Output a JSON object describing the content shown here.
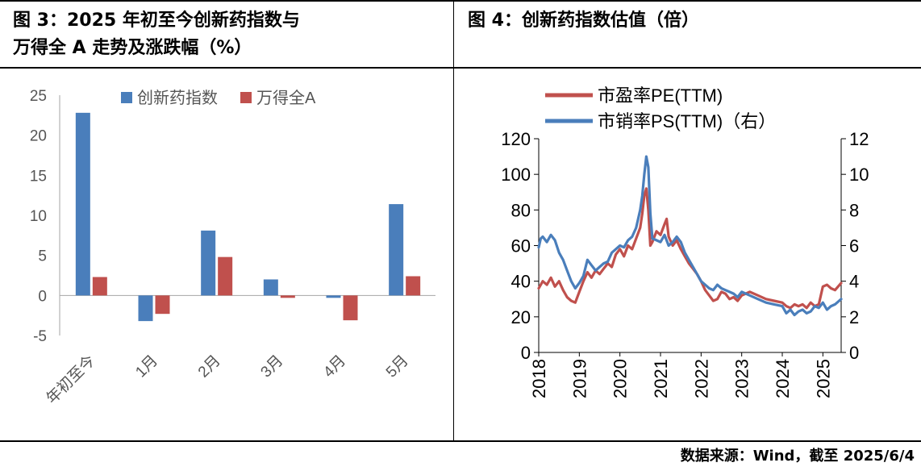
{
  "left_panel": {
    "title_line1": "图 3：2025 年初至今创新药指数与",
    "title_line2": "万得全 A 走势及涨跌幅（%）"
  },
  "right_panel": {
    "title": "图 4：创新药指数估值（倍）"
  },
  "source": "数据来源：Wind，截至 2025/6/4",
  "chart_data": [
    {
      "type": "bar",
      "title": "",
      "categories": [
        "年初至今",
        "1月",
        "2月",
        "3月",
        "4月",
        "5月"
      ],
      "series": [
        {
          "name": "创新药指数",
          "color": "#4a7ebb",
          "values": [
            22.8,
            -3.2,
            8.1,
            2.0,
            -0.3,
            11.4
          ]
        },
        {
          "name": "万得全A",
          "color": "#c0504d",
          "values": [
            2.3,
            -2.3,
            4.8,
            -0.3,
            -3.1,
            2.4
          ]
        }
      ],
      "y_ticks": [
        -5,
        0,
        5,
        10,
        15,
        20,
        25
      ],
      "ylim": [
        -5,
        25
      ],
      "legend_position": "top",
      "grid": false
    },
    {
      "type": "line",
      "title": "",
      "x_ticks": [
        "2018",
        "2019",
        "2020",
        "2021",
        "2022",
        "2023",
        "2024",
        "2025"
      ],
      "xlim": [
        2018.0,
        2025.45
      ],
      "y_left_ticks": [
        0,
        20,
        40,
        60,
        80,
        100,
        120
      ],
      "y_right_ticks": [
        0,
        2,
        4,
        6,
        8,
        10,
        12
      ],
      "ylim_left": [
        0,
        120
      ],
      "ylim_right": [
        0,
        12
      ],
      "legend_position": "top-left",
      "grid": false,
      "series": [
        {
          "name": "市盈率PE(TTM)",
          "axis": "left",
          "color": "#c0504d",
          "x": [
            2018.0,
            2018.1,
            2018.2,
            2018.3,
            2018.4,
            2018.5,
            2018.6,
            2018.7,
            2018.8,
            2018.9,
            2019.0,
            2019.1,
            2019.2,
            2019.3,
            2019.4,
            2019.5,
            2019.6,
            2019.7,
            2019.8,
            2019.9,
            2020.0,
            2020.1,
            2020.2,
            2020.3,
            2020.4,
            2020.5,
            2020.55,
            2020.6,
            2020.65,
            2020.7,
            2020.75,
            2020.8,
            2020.9,
            2021.0,
            2021.1,
            2021.15,
            2021.2,
            2021.3,
            2021.4,
            2021.5,
            2021.6,
            2021.7,
            2021.8,
            2021.9,
            2022.0,
            2022.1,
            2022.2,
            2022.3,
            2022.4,
            2022.5,
            2022.6,
            2022.7,
            2022.8,
            2022.9,
            2023.0,
            2023.2,
            2023.4,
            2023.6,
            2023.8,
            2024.0,
            2024.1,
            2024.2,
            2024.3,
            2024.4,
            2024.5,
            2024.6,
            2024.7,
            2024.8,
            2024.9,
            2024.95,
            2025.0,
            2025.1,
            2025.2,
            2025.3,
            2025.45
          ],
          "y": [
            36,
            40,
            38,
            42,
            37,
            40,
            35,
            31,
            29,
            28,
            34,
            40,
            45,
            42,
            46,
            44,
            47,
            50,
            48,
            55,
            58,
            54,
            60,
            58,
            64,
            70,
            78,
            88,
            92,
            80,
            60,
            62,
            68,
            66,
            72,
            75,
            65,
            60,
            63,
            58,
            54,
            50,
            47,
            44,
            40,
            35,
            32,
            29,
            30,
            34,
            33,
            30,
            31,
            29,
            32,
            34,
            32,
            30,
            29,
            28,
            26,
            25,
            27,
            26,
            27,
            25,
            28,
            26,
            27,
            32,
            37,
            38,
            36,
            35,
            39
          ]
        },
        {
          "name": "市销率PS(TTM)（右）",
          "axis": "right",
          "color": "#4a7ebb",
          "x": [
            2018.0,
            2018.05,
            2018.1,
            2018.2,
            2018.3,
            2018.4,
            2018.5,
            2018.6,
            2018.7,
            2018.8,
            2018.9,
            2019.0,
            2019.1,
            2019.2,
            2019.3,
            2019.4,
            2019.5,
            2019.6,
            2019.7,
            2019.8,
            2019.9,
            2020.0,
            2020.1,
            2020.2,
            2020.3,
            2020.4,
            2020.5,
            2020.55,
            2020.6,
            2020.65,
            2020.7,
            2020.75,
            2020.8,
            2020.9,
            2021.0,
            2021.1,
            2021.2,
            2021.3,
            2021.4,
            2021.5,
            2021.6,
            2021.7,
            2021.8,
            2021.9,
            2022.0,
            2022.1,
            2022.2,
            2022.3,
            2022.4,
            2022.5,
            2022.6,
            2022.7,
            2022.8,
            2022.9,
            2023.0,
            2023.2,
            2023.4,
            2023.6,
            2023.8,
            2024.0,
            2024.1,
            2024.2,
            2024.3,
            2024.4,
            2024.5,
            2024.6,
            2024.7,
            2024.8,
            2024.9,
            2025.0,
            2025.1,
            2025.2,
            2025.3,
            2025.45
          ],
          "y": [
            5.9,
            6.4,
            6.5,
            6.2,
            6.6,
            6.3,
            5.6,
            5.2,
            4.6,
            4.0,
            3.6,
            3.9,
            4.3,
            5.2,
            4.9,
            4.6,
            4.8,
            5.0,
            5.1,
            5.6,
            5.8,
            6.0,
            5.9,
            6.3,
            6.5,
            7.0,
            8.0,
            8.8,
            10.0,
            11.0,
            10.4,
            7.8,
            6.4,
            6.3,
            6.2,
            6.6,
            6.0,
            6.2,
            6.5,
            6.2,
            5.6,
            5.2,
            4.8,
            4.4,
            4.0,
            3.8,
            3.6,
            3.5,
            3.8,
            3.6,
            3.5,
            3.4,
            3.3,
            3.1,
            3.4,
            3.2,
            3.0,
            2.8,
            2.7,
            2.6,
            2.2,
            2.4,
            2.1,
            2.3,
            2.4,
            2.2,
            2.3,
            2.6,
            2.5,
            2.8,
            2.4,
            2.6,
            2.7,
            3.0
          ]
        }
      ]
    }
  ]
}
